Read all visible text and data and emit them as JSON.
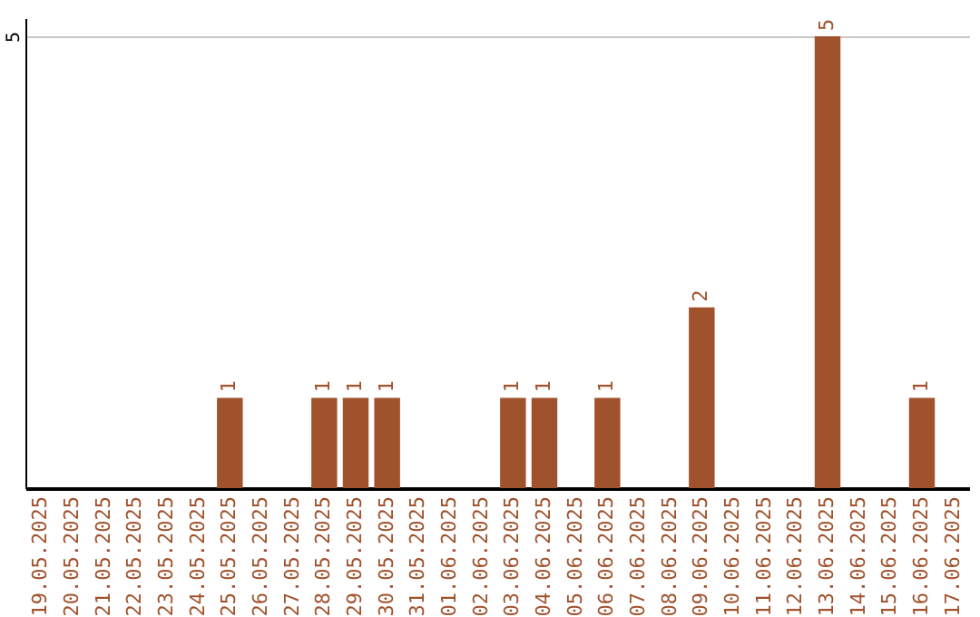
{
  "chart_data": {
    "type": "bar",
    "categories": [
      "19.05.2025",
      "20.05.2025",
      "21.05.2025",
      "22.05.2025",
      "23.05.2025",
      "24.05.2025",
      "25.05.2025",
      "26.05.2025",
      "27.05.2025",
      "28.05.2025",
      "29.05.2025",
      "30.05.2025",
      "31.05.2025",
      "01.06.2025",
      "02.06.2025",
      "03.06.2025",
      "04.06.2025",
      "05.06.2025",
      "06.06.2025",
      "07.06.2025",
      "08.06.2025",
      "09.06.2025",
      "10.06.2025",
      "11.06.2025",
      "12.06.2025",
      "13.06.2025",
      "14.06.2025",
      "15.06.2025",
      "16.06.2025",
      "17.06.2025"
    ],
    "values": [
      0,
      0,
      0,
      0,
      0,
      0,
      1,
      0,
      0,
      1,
      1,
      1,
      0,
      0,
      0,
      1,
      1,
      0,
      1,
      0,
      0,
      2,
      0,
      0,
      0,
      5,
      0,
      0,
      1,
      0
    ],
    "value_labels": [
      null,
      null,
      null,
      null,
      null,
      null,
      "1",
      null,
      null,
      "1",
      "1",
      "1",
      null,
      null,
      null,
      "1",
      "1",
      null,
      "1",
      null,
      null,
      "2",
      null,
      null,
      null,
      "5",
      null,
      null,
      "1",
      null
    ],
    "color": "#a0522d",
    "ylim": [
      0,
      5.2
    ],
    "yticks": [
      5
    ],
    "grid": "y"
  }
}
